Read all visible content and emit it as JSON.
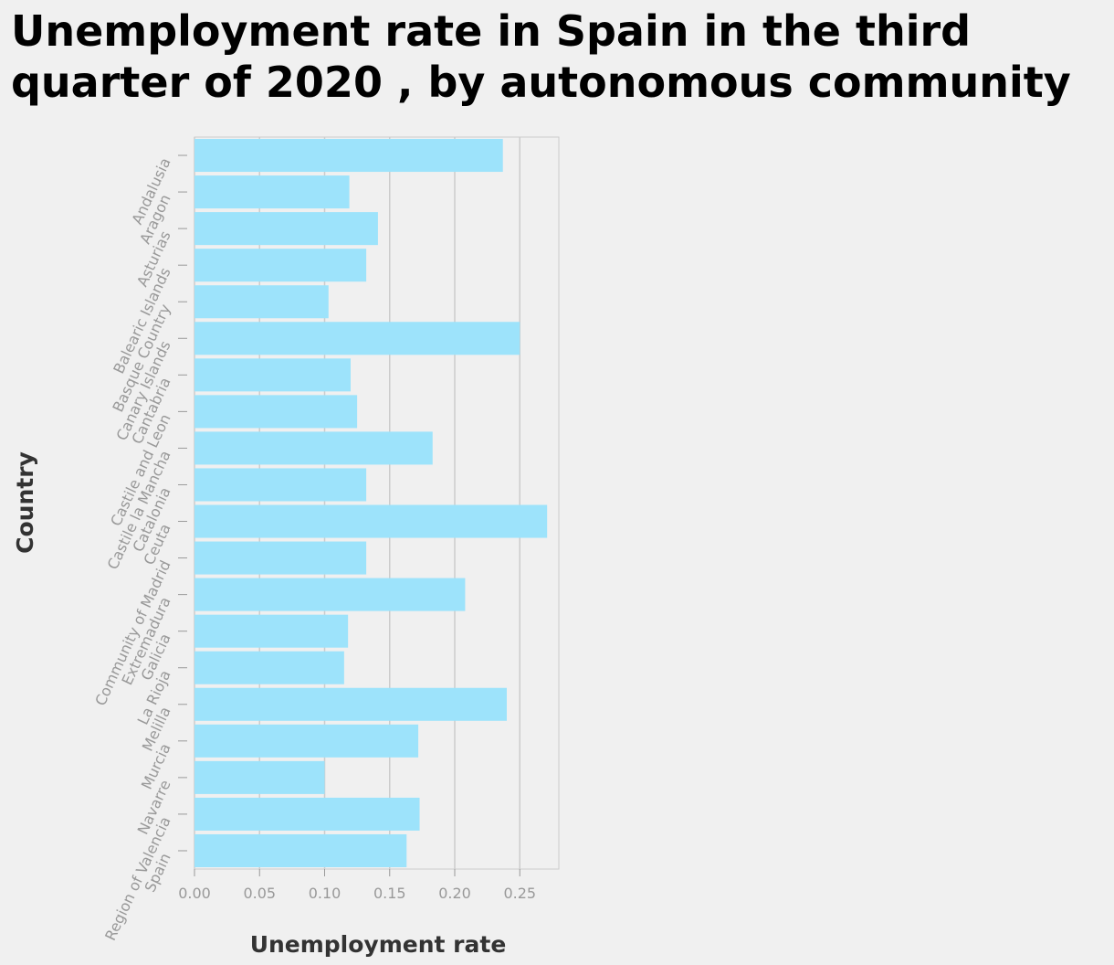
{
  "chart_data": {
    "type": "bar",
    "orientation": "horizontal",
    "title": "Unemployment rate in Spain in the third quarter of 2020 , by autonomous community",
    "xlabel": "Unemployment rate",
    "ylabel": "Country",
    "categories": [
      "Andalusia",
      "Aragon",
      "Asturias",
      "Balearic Islands",
      "Basque Country",
      "Canary Islands",
      "Cantabria",
      "Castile and Leon",
      "Castile la Mancha",
      "Catalonia",
      "Ceuta",
      "Community of Madrid",
      "Extremadura",
      "Galicia",
      "La Rioja",
      "Melilla",
      "Murcia",
      "Navarre",
      "Region of Valencia",
      "Spain"
    ],
    "values": [
      0.237,
      0.119,
      0.141,
      0.132,
      0.103,
      0.25,
      0.12,
      0.125,
      0.183,
      0.132,
      0.271,
      0.132,
      0.208,
      0.118,
      0.115,
      0.24,
      0.172,
      0.1,
      0.173,
      0.163
    ],
    "xlim": [
      0,
      0.28
    ],
    "xticks": [
      "0.00",
      "0.05",
      "0.10",
      "0.15",
      "0.20",
      "0.25"
    ],
    "xtick_values": [
      0,
      0.05,
      0.1,
      0.15,
      0.2,
      0.25
    ],
    "grid": "vertical",
    "bar_color": "#9de3fb",
    "grid_color": "#cccccc",
    "background": "#f0f0f0"
  }
}
